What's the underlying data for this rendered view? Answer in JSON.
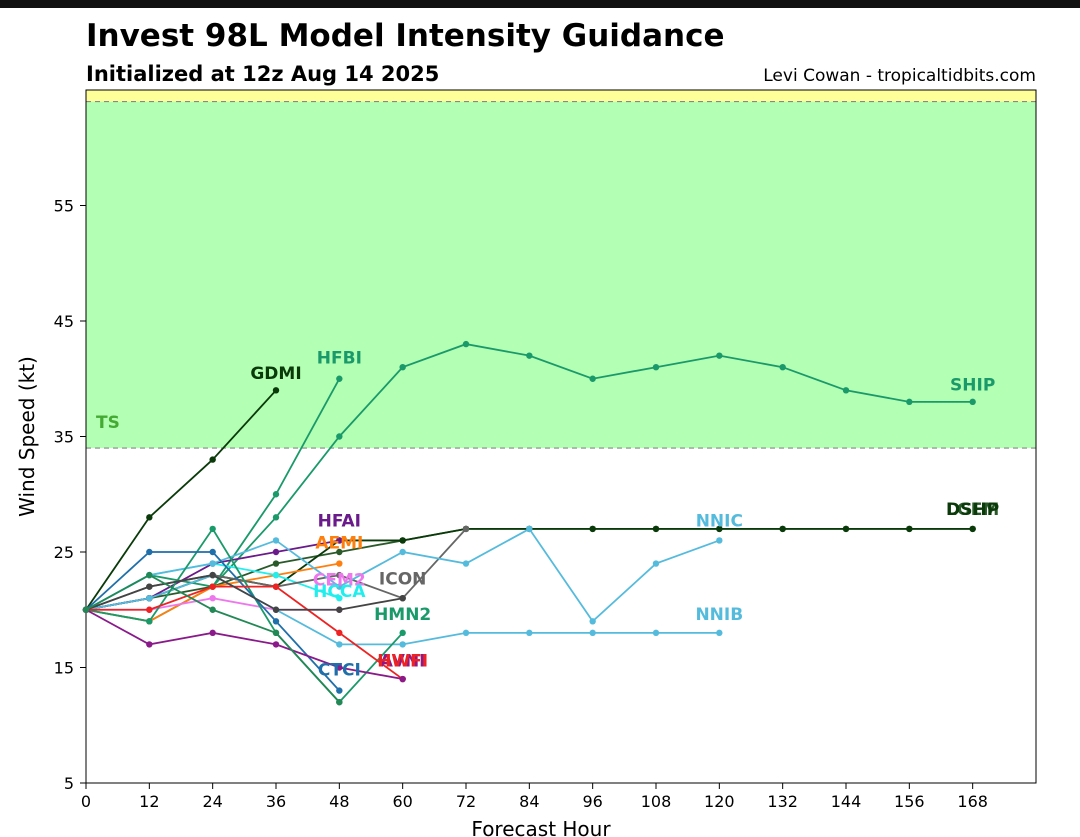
{
  "header": {
    "title": "Invest 98L Model Intensity Guidance",
    "subtitle": "Initialized at 12z Aug 14 2025",
    "credit": "Levi Cowan - tropicaltidbits.com"
  },
  "chart_data": {
    "type": "line",
    "xlabel": "Forecast Hour",
    "ylabel": "Wind Speed (kt)",
    "xlim": [
      0,
      180
    ],
    "ylim": [
      5,
      65
    ],
    "xticks": [
      0,
      12,
      24,
      36,
      48,
      60,
      72,
      84,
      96,
      108,
      120,
      132,
      144,
      156,
      168
    ],
    "yticks": [
      5,
      15,
      25,
      35,
      45,
      55
    ],
    "zones": [
      {
        "name": "TS",
        "from": 34,
        "to": 64,
        "color": "#b3ffb3",
        "label_color": "#44aa33"
      },
      {
        "name": "",
        "from": 64,
        "to": 65,
        "color": "#ffff99",
        "label_color": ""
      }
    ],
    "series": [
      {
        "name": "SHIP",
        "color": "#1a9a6a",
        "x": [
          0,
          12,
          24,
          36,
          48,
          60,
          72,
          84,
          96,
          108,
          120,
          132,
          144,
          156,
          168
        ],
        "y": [
          20,
          23,
          22,
          28,
          35,
          41,
          43,
          42,
          40,
          41,
          42,
          41,
          39,
          38,
          38
        ]
      },
      {
        "name": "LGEM",
        "color": "#2a5a2a",
        "x": [
          0,
          12,
          24,
          36,
          48,
          60,
          72,
          84,
          96,
          108,
          120,
          132,
          144,
          156,
          168
        ],
        "y": [
          20,
          21,
          22,
          24,
          25,
          26,
          27,
          27,
          27,
          27,
          27,
          27,
          27,
          27,
          27
        ]
      },
      {
        "name": "DSHP",
        "color": "#0a3a0a",
        "x": [
          0,
          12,
          24,
          36,
          48,
          60,
          72,
          84,
          96,
          108,
          120,
          132,
          144,
          156,
          168
        ],
        "y": [
          20,
          21,
          23,
          22,
          26,
          26,
          27,
          27,
          27,
          27,
          27,
          27,
          27,
          27,
          27
        ]
      },
      {
        "name": "GDMI",
        "color": "#0a3a0a",
        "x": [
          0,
          12,
          24,
          36
        ],
        "y": [
          20,
          28,
          33,
          39
        ]
      },
      {
        "name": "HFBI",
        "color": "#1a9a6a",
        "x": [
          0,
          12,
          24,
          36,
          48
        ],
        "y": [
          20,
          19,
          22,
          30,
          40
        ]
      },
      {
        "name": "HFAI",
        "color": "#6a1a8a",
        "x": [
          0,
          12,
          24,
          36,
          48
        ],
        "y": [
          20,
          21,
          24,
          25,
          26
        ]
      },
      {
        "name": "AEMI",
        "color": "#ff7f0e",
        "x": [
          0,
          12,
          24,
          36,
          48
        ],
        "y": [
          20,
          19,
          22,
          23,
          24
        ]
      },
      {
        "name": "CEM2",
        "color": "#ee77ee",
        "x": [
          0,
          12,
          24,
          36,
          48
        ],
        "y": [
          20,
          20,
          21,
          20,
          20
        ]
      },
      {
        "name": "HCCA",
        "color": "#22eeee",
        "x": [
          0,
          12,
          24,
          36,
          48
        ],
        "y": [
          20,
          23,
          24,
          23,
          21
        ]
      },
      {
        "name": "ICON",
        "color": "#666666",
        "x": [
          0,
          12,
          24,
          36,
          48,
          60,
          72
        ],
        "y": [
          20,
          22,
          23,
          22,
          23,
          21,
          27
        ]
      },
      {
        "name": "NNIC",
        "color": "#55bbdd",
        "x": [
          0,
          12,
          24,
          36,
          48,
          60,
          72,
          84,
          96,
          108,
          120
        ],
        "y": [
          20,
          23,
          24,
          26,
          22,
          25,
          24,
          27,
          19,
          24,
          26
        ]
      },
      {
        "name": "NNIB",
        "color": "#55bbdd",
        "x": [
          0,
          12,
          24,
          36,
          48,
          60,
          72,
          84,
          96,
          108,
          120
        ],
        "y": [
          20,
          21,
          23,
          20,
          17,
          17,
          18,
          18,
          18,
          18,
          18
        ]
      },
      {
        "name": "HMN2",
        "color": "#1a9a6a",
        "x": [
          0,
          12,
          24,
          36,
          48,
          60
        ],
        "y": [
          20,
          19,
          27,
          18,
          12,
          18
        ]
      },
      {
        "name": "CTCI",
        "color": "#1f6faa",
        "x": [
          0,
          12,
          24,
          36,
          48
        ],
        "y": [
          20,
          25,
          25,
          19,
          13
        ]
      },
      {
        "name": "HWFI",
        "color": "#ee2222",
        "x": [
          0,
          12,
          24,
          36,
          48,
          60
        ],
        "y": [
          20,
          20,
          22,
          22,
          18,
          14
        ]
      },
      {
        "name": "AVNI",
        "color": "#8a1a8a",
        "x": [
          0,
          12,
          24,
          36,
          48,
          60
        ],
        "y": [
          20,
          17,
          18,
          17,
          15,
          14
        ]
      },
      {
        "name": "",
        "color": "#444444",
        "x": [
          0,
          12,
          24,
          36,
          48,
          60
        ],
        "y": [
          20,
          22,
          23,
          20,
          20,
          21
        ]
      },
      {
        "name": "",
        "color": "#228855",
        "x": [
          0,
          12,
          24,
          36,
          48
        ],
        "y": [
          20,
          23,
          20,
          18,
          12
        ]
      }
    ],
    "labels": [
      {
        "text": "GDMI",
        "x": 36,
        "y": 40,
        "color": "#0a3a0a"
      },
      {
        "text": "HFBI",
        "x": 48,
        "y": 41.3,
        "color": "#1a9a6a"
      },
      {
        "text": "SHIP",
        "x": 168,
        "y": 39,
        "color": "#1a9a6a"
      },
      {
        "text": "LGEM",
        "x": 168,
        "y": 28.2,
        "color": "#2a5a2a"
      },
      {
        "text": "DSHP",
        "x": 168,
        "y": 28.2,
        "color": "#0a3a0a"
      },
      {
        "text": "HFAI",
        "x": 48,
        "y": 27.2,
        "color": "#6a1a8a"
      },
      {
        "text": "AEMI",
        "x": 48,
        "y": 25.3,
        "color": "#ff7f0e"
      },
      {
        "text": "NNIC",
        "x": 120,
        "y": 27.2,
        "color": "#55bbdd"
      },
      {
        "text": "CEM2",
        "x": 48,
        "y": 22.1,
        "color": "#ee77ee"
      },
      {
        "text": "ICON",
        "x": 60,
        "y": 22.2,
        "color": "#666666"
      },
      {
        "text": "HCCA",
        "x": 48,
        "y": 21.1,
        "color": "#22eeee"
      },
      {
        "text": "HMN2",
        "x": 60,
        "y": 19.1,
        "color": "#1a9a6a"
      },
      {
        "text": "NNIB",
        "x": 120,
        "y": 19.1,
        "color": "#55bbdd"
      },
      {
        "text": "AVNI",
        "x": 60,
        "y": 15.1,
        "color": "#8a1a8a"
      },
      {
        "text": "HWFI",
        "x": 60,
        "y": 15.1,
        "color": "#ee2222"
      },
      {
        "text": "CTCI",
        "x": 48,
        "y": 14.3,
        "color": "#1f6faa"
      }
    ]
  }
}
